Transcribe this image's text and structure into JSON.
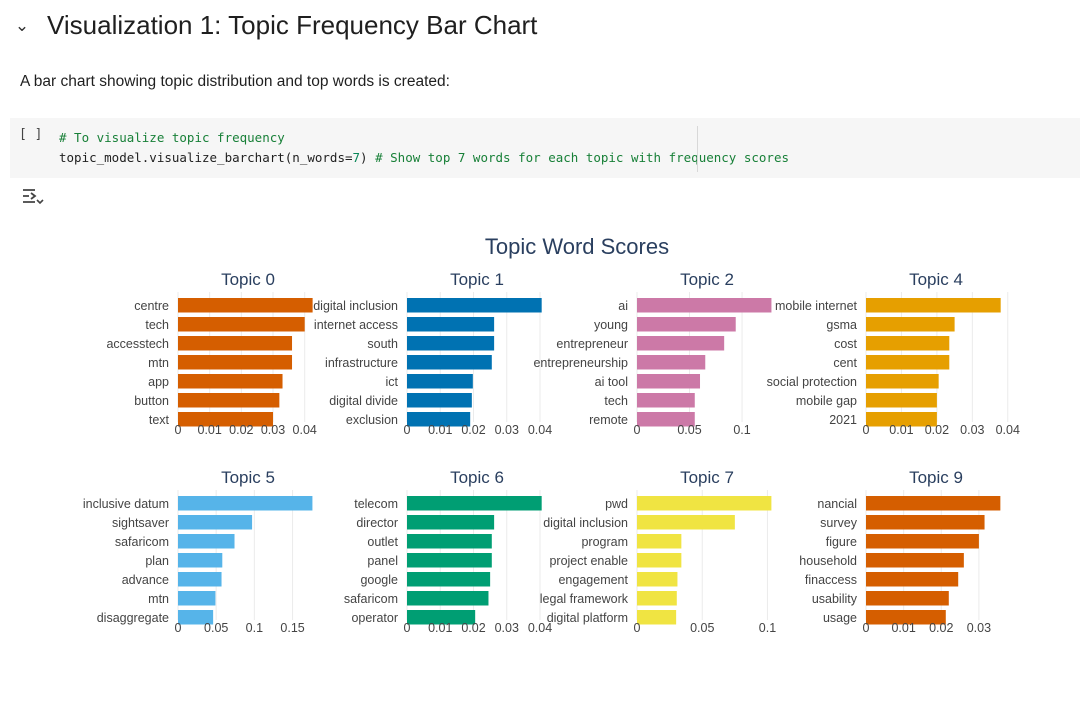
{
  "section": {
    "toggle_icon": "chevron-down-icon",
    "title": "Visualization 1: Topic Frequency Bar Chart"
  },
  "description": "A bar chart showing topic distribution and top words is created:",
  "code_cell": {
    "run_label": "[ ]",
    "line1_comment": "# To visualize topic frequency",
    "line2_call": "topic_model.visualize_barchart(",
    "line2_arg": "n_words=",
    "line2_num": "7",
    "line2_close": ")",
    "line2_comment": " # Show top 7 words for each topic with frequency scores"
  },
  "output_icon": "output-toggle-icon",
  "chart_data": {
    "type": "bar",
    "orientation": "horizontal",
    "title": "Topic Word Scores",
    "grid": true,
    "panels": [
      {
        "title": "Topic 0",
        "color": "#D55E00",
        "categories": [
          "centre",
          "tech",
          "accesstech",
          "mtn",
          "app",
          "button",
          "text"
        ],
        "values": [
          0.0425,
          0.04,
          0.036,
          0.036,
          0.033,
          0.032,
          0.03
        ],
        "ticks": [
          0,
          0.01,
          0.02,
          0.03,
          0.04
        ],
        "tick_labels": [
          "0",
          "0.01",
          "0.02",
          "0.03",
          "0.04"
        ],
        "xlim": [
          0,
          0.0442
        ]
      },
      {
        "title": "Topic 1",
        "color": "#0072B2",
        "categories": [
          "digital inclusion",
          "internet access",
          "south",
          "infrastructure",
          "ict",
          "digital divide",
          "exclusion"
        ],
        "values": [
          0.0405,
          0.0262,
          0.0262,
          0.0255,
          0.0198,
          0.0195,
          0.019
        ],
        "ticks": [
          0,
          0.01,
          0.02,
          0.03,
          0.04
        ],
        "tick_labels": [
          "0",
          "0.01",
          "0.02",
          "0.03",
          "0.04"
        ],
        "xlim": [
          0,
          0.0421
        ]
      },
      {
        "title": "Topic 2",
        "color": "#CC79A7",
        "categories": [
          "ai",
          "young",
          "entrepreneur",
          "entrepreneurship",
          "ai tool",
          "tech",
          "remote"
        ],
        "values": [
          0.128,
          0.094,
          0.083,
          0.065,
          0.06,
          0.055,
          0.055
        ],
        "ticks": [
          0,
          0.05,
          0.1
        ],
        "tick_labels": [
          "0",
          "0.05",
          "0.1"
        ],
        "xlim": [
          0,
          0.1333
        ]
      },
      {
        "title": "Topic 4",
        "color": "#E69F00",
        "categories": [
          "mobile internet",
          "gsma",
          "cost",
          "cent",
          "social protection",
          "mobile gap",
          "2021"
        ],
        "values": [
          0.038,
          0.025,
          0.0235,
          0.0235,
          0.0205,
          0.02,
          0.02
        ],
        "ticks": [
          0,
          0.01,
          0.02,
          0.03,
          0.04
        ],
        "tick_labels": [
          "0",
          "0.01",
          "0.02",
          "0.03",
          "0.04"
        ],
        "xlim": [
          0,
          0.0395
        ]
      },
      {
        "title": "Topic 5",
        "color": "#56B4E9",
        "categories": [
          "inclusive datum",
          "sightsaver",
          "safaricom",
          "plan",
          "advance",
          "mtn",
          "disaggregate"
        ],
        "values": [
          0.176,
          0.097,
          0.074,
          0.058,
          0.057,
          0.049,
          0.046
        ],
        "ticks": [
          0,
          0.05,
          0.1,
          0.15
        ],
        "tick_labels": [
          "0",
          "0.05",
          "0.1",
          "0.15"
        ],
        "xlim": [
          0,
          0.1833
        ]
      },
      {
        "title": "Topic 6",
        "color": "#009E73",
        "categories": [
          "telecom",
          "director",
          "outlet",
          "panel",
          "google",
          "safaricom",
          "operator"
        ],
        "values": [
          0.0405,
          0.0262,
          0.0255,
          0.0255,
          0.025,
          0.0245,
          0.0205
        ],
        "ticks": [
          0,
          0.01,
          0.02,
          0.03,
          0.04
        ],
        "tick_labels": [
          "0",
          "0.01",
          "0.02",
          "0.03",
          "0.04"
        ],
        "xlim": [
          0,
          0.0421
        ]
      },
      {
        "title": "Topic 7",
        "color": "#F0E442",
        "categories": [
          "pwd",
          "digital inclusion",
          "program",
          "project enable",
          "engagement",
          "legal framework",
          "digital platform"
        ],
        "values": [
          0.103,
          0.075,
          0.034,
          0.034,
          0.031,
          0.0305,
          0.03
        ],
        "ticks": [
          0,
          0.05,
          0.1
        ],
        "tick_labels": [
          "0",
          "0.05",
          "0.1"
        ],
        "xlim": [
          0,
          0.1073
        ]
      },
      {
        "title": "Topic 9",
        "color": "#D55E00",
        "categories": [
          "nancial",
          "survey",
          "figure",
          "household",
          "finaccess",
          "usability",
          "usage"
        ],
        "values": [
          0.0357,
          0.0315,
          0.03,
          0.026,
          0.0245,
          0.022,
          0.0212
        ],
        "ticks": [
          0,
          0.01,
          0.02,
          0.03
        ],
        "tick_labels": [
          "0",
          "0.01",
          "0.02",
          "0.03"
        ],
        "xlim": [
          0,
          0.0372
        ]
      }
    ]
  }
}
